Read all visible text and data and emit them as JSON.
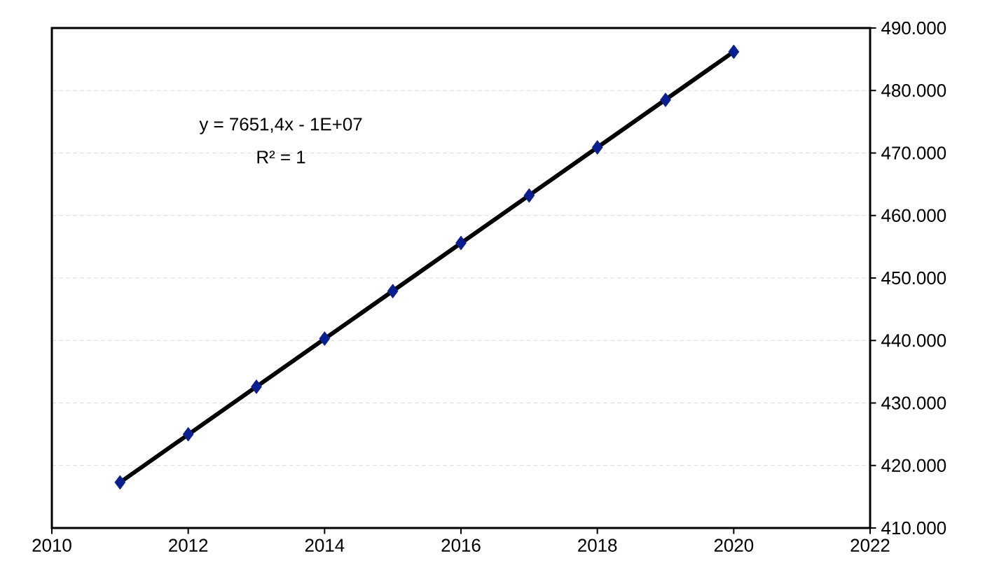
{
  "chart_data": {
    "type": "scatter",
    "series": [
      {
        "x": [
          2011,
          2012,
          2013,
          2014,
          2015,
          2016,
          2017,
          2018,
          2019,
          2020
        ],
        "values": [
          417300,
          425000,
          432600,
          440300,
          447900,
          455600,
          463200,
          470900,
          478500,
          486200
        ],
        "color": "#0a1f8f",
        "marker": "diamond"
      },
      {
        "type": "line",
        "x": [
          2011,
          2020
        ],
        "values": [
          417300,
          486200
        ],
        "color": "#000000",
        "marker": "none"
      }
    ],
    "xlim": [
      2010,
      2022
    ],
    "xticks": [
      2010,
      2012,
      2014,
      2016,
      2018,
      2020,
      2022
    ],
    "ylim": [
      410000,
      490000
    ],
    "yticks": [
      {
        "value": 410000,
        "label": "410.000"
      },
      {
        "value": 420000,
        "label": "420.000"
      },
      {
        "value": 430000,
        "label": "430.000"
      },
      {
        "value": 440000,
        "label": "440.000"
      },
      {
        "value": 450000,
        "label": "450.000"
      },
      {
        "value": 460000,
        "label": "460.000"
      },
      {
        "value": 470000,
        "label": "470.000"
      },
      {
        "value": 480000,
        "label": "480.000"
      },
      {
        "value": 490000,
        "label": "490.000"
      }
    ],
    "grid": "y",
    "annotations": [
      "y = 7651,4x - 1E+07",
      "R² = 1"
    ]
  }
}
